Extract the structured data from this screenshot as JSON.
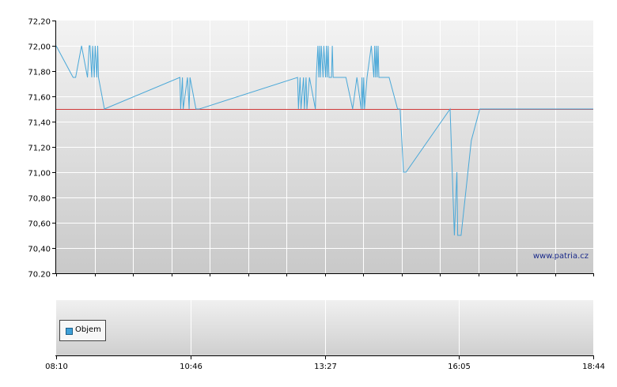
{
  "watermark": "www.patria.cz",
  "legend": {
    "label": "Objem",
    "color": "#3ea0d8"
  },
  "colors": {
    "price_line": "#4aa8d8",
    "reference_line": "#d03a3a"
  },
  "chart_data": [
    {
      "type": "line",
      "ylim": [
        70.2,
        72.2
      ],
      "y_ticks": [
        "72,20",
        "72,00",
        "71,80",
        "71,60",
        "71,40",
        "71,20",
        "71,00",
        "70,80",
        "70,60",
        "70,40",
        "70.20"
      ],
      "x_ticks": [
        "08:10",
        "10:46",
        "13:27",
        "16:05",
        "18:44"
      ],
      "x_range": [
        "08:10",
        "18:44"
      ],
      "grid": true,
      "reference_value": 71.5,
      "series": [
        {
          "x": [
            "08:10",
            "08:30",
            "08:33",
            "08:40",
            "08:47",
            "08:49",
            "08:50",
            "08:52",
            "08:53",
            "08:55",
            "08:56",
            "08:58",
            "08:59",
            "09:00",
            "09:07",
            "10:36",
            "10:37",
            "10:39",
            "10:40",
            "10:45",
            "10:47",
            "10:48",
            "10:55",
            "10:59",
            "12:55",
            "12:56",
            "12:58",
            "12:59",
            "13:02",
            "13:03",
            "13:05",
            "13:06",
            "13:09",
            "13:16",
            "13:17",
            "13:19",
            "13:20",
            "13:21",
            "13:22",
            "13:23",
            "13:25",
            "13:26",
            "13:28",
            "13:29",
            "13:30",
            "13:31",
            "13:32",
            "13:33",
            "13:35",
            "13:36",
            "13:37",
            "13:42",
            "13:52",
            "14:00",
            "14:05",
            "14:10",
            "14:11",
            "14:12",
            "14:13",
            "14:14",
            "14:17",
            "14:22",
            "14:25",
            "14:26",
            "14:27",
            "14:28",
            "14:29",
            "14:30",
            "14:31",
            "14:43",
            "14:53",
            "14:56",
            "15:00",
            "15:03",
            "15:55",
            "16:00",
            "16:03",
            "16:04",
            "16:05",
            "16:06",
            "16:07",
            "16:07",
            "16:08",
            "16:20",
            "16:30",
            "16:31",
            "18:44"
          ],
          "y": [
            72.0,
            71.75,
            71.75,
            72.0,
            71.75,
            72.0,
            72.0,
            71.75,
            72.0,
            71.75,
            72.0,
            71.75,
            72.0,
            71.75,
            71.5,
            71.75,
            71.5,
            71.75,
            71.5,
            71.75,
            71.5,
            71.75,
            71.5,
            71.5,
            71.75,
            71.5,
            71.75,
            71.5,
            71.75,
            71.5,
            71.75,
            71.5,
            71.75,
            71.5,
            71.75,
            72.0,
            71.75,
            72.0,
            71.75,
            72.0,
            71.75,
            72.0,
            71.75,
            72.0,
            71.75,
            72.0,
            71.75,
            71.75,
            71.75,
            72.0,
            71.75,
            71.75,
            71.75,
            71.5,
            71.75,
            71.5,
            71.75,
            71.5,
            71.75,
            71.5,
            71.75,
            72.0,
            71.75,
            72.0,
            71.75,
            72.0,
            71.75,
            72.0,
            71.75,
            71.75,
            71.5,
            71.5,
            71.0,
            71.0,
            71.5,
            70.5,
            71.0,
            70.5,
            70.5,
            70.5,
            70.5,
            70.5,
            70.5,
            71.25,
            71.5,
            71.5,
            71.5
          ]
        }
      ]
    },
    {
      "type": "bar",
      "series": [
        {
          "name": "Objem",
          "values": []
        }
      ]
    }
  ]
}
